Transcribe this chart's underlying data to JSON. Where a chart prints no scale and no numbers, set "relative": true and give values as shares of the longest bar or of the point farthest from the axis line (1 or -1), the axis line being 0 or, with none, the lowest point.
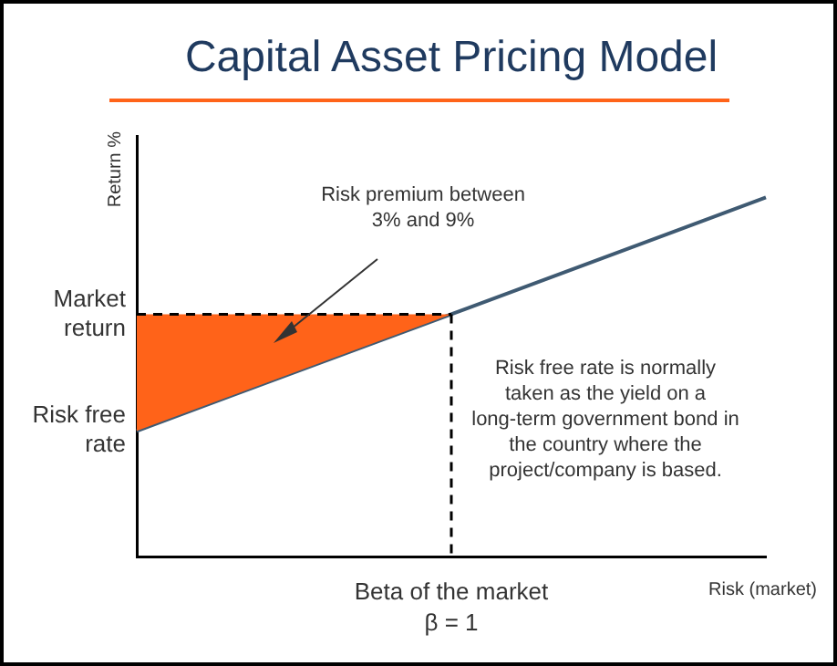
{
  "chart_data": {
    "type": "line",
    "title": "Capital Asset Pricing Model",
    "ylabel": "Return %",
    "xlabel": "Risk (market)",
    "relative": true,
    "grid": false,
    "legend": false,
    "categories": [
      null,
      null,
      null
    ],
    "series": [
      {
        "color": "#3f5a72",
        "values": [
          0.35,
          0.675,
          1
        ]
      },
      {
        "type": "area",
        "color": "#ff6319",
        "values": [
          0.675,
          0.675,
          null
        ]
      }
    ],
    "annotations": [
      "Risk free rate",
      "Market return",
      "Beta of the market\nβ = 1",
      "Risk premium between 3% and 9%",
      "Risk free rate is normally taken as the yield on a long-term government bond in the country where the project/company is based."
    ]
  }
}
